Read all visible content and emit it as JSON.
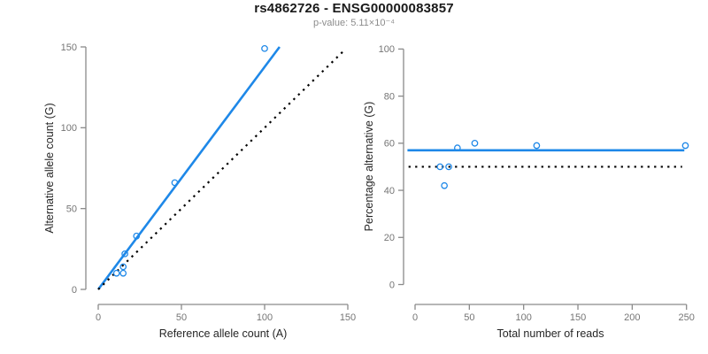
{
  "figure": {
    "title": "rs4862726 - ENSG00000083857",
    "subtitle": "p-value: 5.11×10⁻⁴",
    "background": "#ffffff",
    "colors": {
      "accent_blue": "#1e88e8",
      "reference_black": "#000000",
      "axis_gray": "#8a8a8a",
      "tick_label_gray": "#757575",
      "title_black": "#1a1a1a",
      "subtitle_gray": "#8c8c8c"
    }
  },
  "chart_data": [
    {
      "type": "scatter",
      "panel": "left",
      "xlabel": "Reference allele count (A)",
      "ylabel": "Alternative allele count (G)",
      "xlim": [
        0,
        150
      ],
      "ylim": [
        0,
        150
      ],
      "xticks": [
        0,
        50,
        100,
        150
      ],
      "yticks": [
        0,
        50,
        100,
        150
      ],
      "grid": false,
      "legend": "none",
      "points": [
        [
          11,
          10
        ],
        [
          15,
          10
        ],
        [
          15,
          14
        ],
        [
          16,
          22
        ],
        [
          23,
          33
        ],
        [
          46,
          66
        ],
        [
          100,
          149
        ]
      ],
      "lines": [
        {
          "name": "fitted-allelic-ratio-line",
          "style": "solid",
          "color_key": "accent_blue",
          "x1": 0,
          "y1": 0,
          "x2": 109,
          "y2": 150
        },
        {
          "name": "identity-line-y-equals-x",
          "style": "dotted",
          "color_key": "reference_black",
          "x1": 0,
          "y1": 0,
          "x2": 148,
          "y2": 148
        }
      ]
    },
    {
      "type": "scatter",
      "panel": "right",
      "xlabel": "Total number of reads",
      "ylabel": "Percentage alternative (G)",
      "xlim": [
        0,
        250
      ],
      "ylim": [
        0,
        100
      ],
      "xticks": [
        0,
        50,
        100,
        150,
        200,
        250
      ],
      "yticks": [
        0,
        20,
        40,
        60,
        80,
        100
      ],
      "grid": false,
      "legend": "none",
      "points": [
        [
          23,
          50
        ],
        [
          27,
          42
        ],
        [
          31,
          50
        ],
        [
          39,
          58
        ],
        [
          55,
          60
        ],
        [
          112,
          59
        ],
        [
          249,
          59
        ]
      ],
      "lines": [
        {
          "name": "mean-percentage-line",
          "style": "solid",
          "color_key": "accent_blue",
          "x1": -7,
          "y1": 57,
          "x2": 248,
          "y2": 57
        },
        {
          "name": "fifty-percent-line",
          "style": "dotted",
          "color_key": "reference_black",
          "x1": -6,
          "y1": 50,
          "x2": 246,
          "y2": 50
        }
      ]
    }
  ]
}
